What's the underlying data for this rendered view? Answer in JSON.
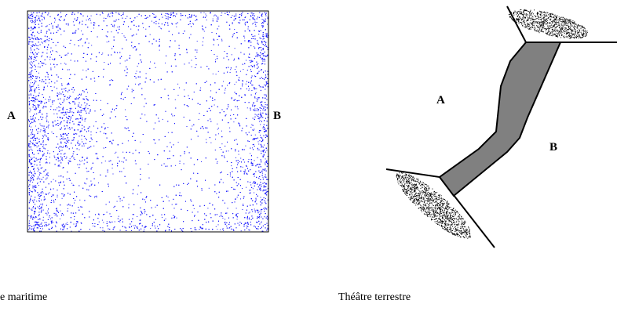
{
  "maritime": {
    "label_a": "A",
    "label_b": "B",
    "caption": "e maritime",
    "dot_color": "#1a1aff"
  },
  "terrestre": {
    "label_a": "A",
    "label_b": "B",
    "caption": "Théâtre terrestre",
    "strait_fill": "#808080",
    "land_color": "#000000"
  }
}
